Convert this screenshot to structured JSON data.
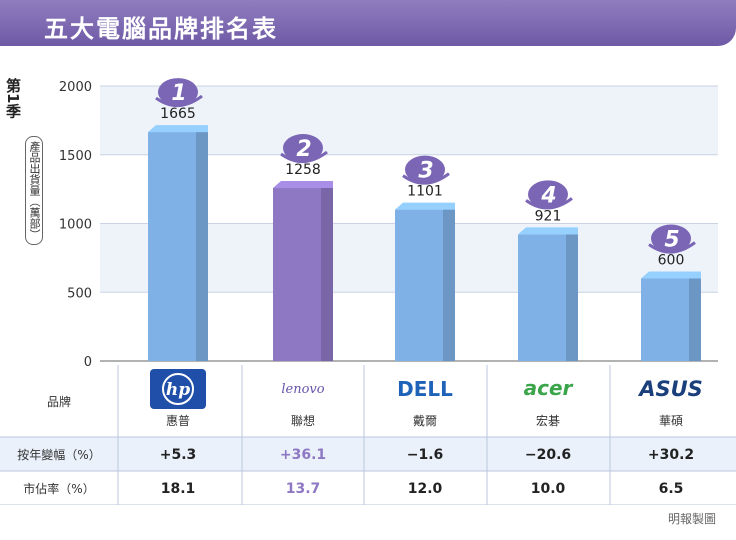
{
  "header": {
    "title": "五大電腦品牌排名表"
  },
  "chart_data": {
    "type": "bar",
    "ylabel": "第1季",
    "ylabel_sub": "產品出貨量（萬部）",
    "ylim": [
      0,
      2000
    ],
    "yticks": [
      0,
      500,
      1000,
      1500,
      2000
    ],
    "categories": [
      "惠普",
      "聯想",
      "戴爾",
      "宏碁",
      "華碩"
    ],
    "ranks": [
      "1",
      "2",
      "3",
      "4",
      "5"
    ],
    "values": [
      1665,
      1258,
      1101,
      921,
      600
    ],
    "value_labels": [
      "1665",
      "1258",
      "1101",
      "921",
      "600"
    ],
    "bar_colors": [
      "#7fb0e6",
      "#8e78c4",
      "#7fb0e6",
      "#7fb0e6",
      "#7fb0e6"
    ],
    "badge_color": "#7a66b5"
  },
  "table": {
    "row_labels": [
      "品牌",
      "按年變幅（%）",
      "市佔率（%）"
    ],
    "logos": [
      "hp",
      "lenovo",
      "DELL",
      "acer",
      "ASUS"
    ],
    "brands": [
      "惠普",
      "聯想",
      "戴爾",
      "宏碁",
      "華碩"
    ],
    "yoy": [
      "+5.3",
      "+36.1",
      "−1.6",
      "−20.6",
      "+30.2"
    ],
    "share": [
      "18.1",
      "13.7",
      "12.0",
      "10.0",
      "6.5"
    ],
    "highlight_color": "#8e78c4",
    "band_color": "#eaf1fa"
  },
  "source": "明報製圖"
}
